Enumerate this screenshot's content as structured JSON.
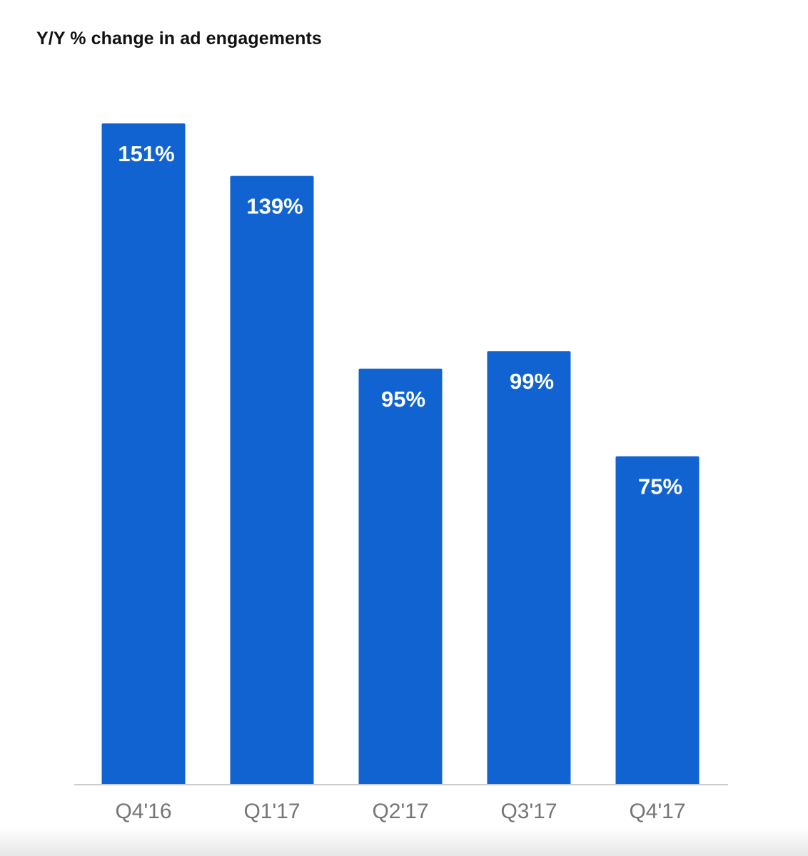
{
  "chart_data": {
    "type": "bar",
    "title": "Y/Y % change in ad engagements",
    "xlabel": "",
    "ylabel": "",
    "categories": [
      "Q4'16",
      "Q1'17",
      "Q2'17",
      "Q3'17",
      "Q4'17"
    ],
    "values": [
      151,
      139,
      95,
      99,
      75
    ],
    "data_labels": [
      "151%",
      "139%",
      "95%",
      "99%",
      "75%"
    ],
    "ylim": [
      0,
      151
    ],
    "grid": false,
    "legend": "none",
    "colors": {
      "bar": "#1063D1",
      "bar_label": "#ffffff",
      "tick_label": "#757575",
      "baseline": "#cccccc"
    }
  }
}
